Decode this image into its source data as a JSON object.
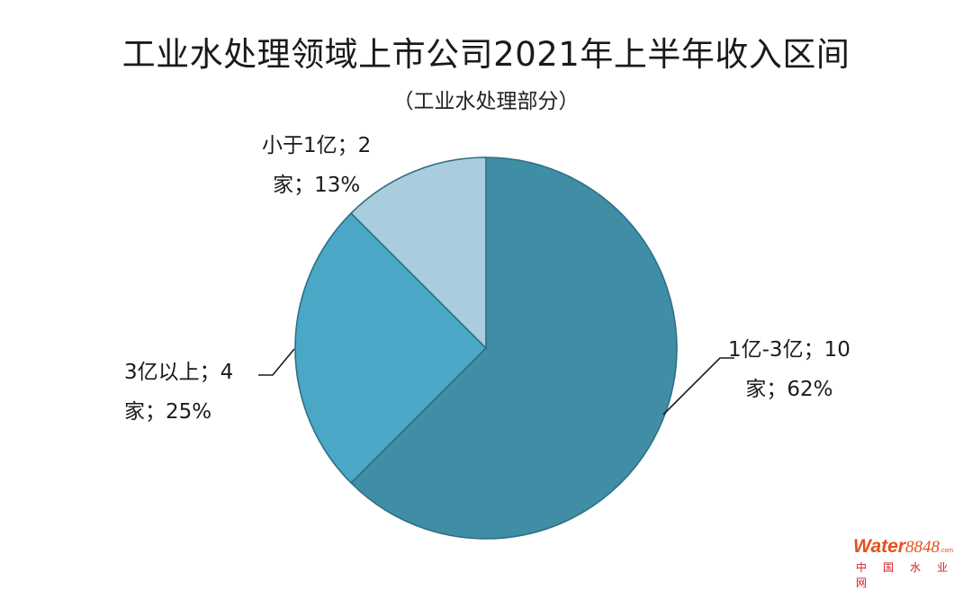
{
  "chart_data": {
    "type": "pie",
    "title": "工业水处理领域上市公司2021年上半年收入区间",
    "subtitle": "（工业水处理部分）",
    "slices": [
      {
        "name": "1亿-3亿",
        "count": 10,
        "percent": 62,
        "color": "#3f8ea6",
        "label_line1": "1亿-3亿；10",
        "label_line2": "家；62%"
      },
      {
        "name": "3亿以上",
        "count": 4,
        "percent": 25,
        "color": "#4aa8c6",
        "label_line1": "3亿以上；4",
        "label_line2": "家；25%"
      },
      {
        "name": "小于1亿",
        "count": 2,
        "percent": 13,
        "color": "#aacddd",
        "label_line1": "小于1亿；2",
        "label_line2": "家；13%"
      }
    ]
  },
  "watermark": {
    "brand_word": "Water",
    "brand_num": "8848",
    "brand_domain": ".com",
    "cn_text": "中国水业网"
  }
}
